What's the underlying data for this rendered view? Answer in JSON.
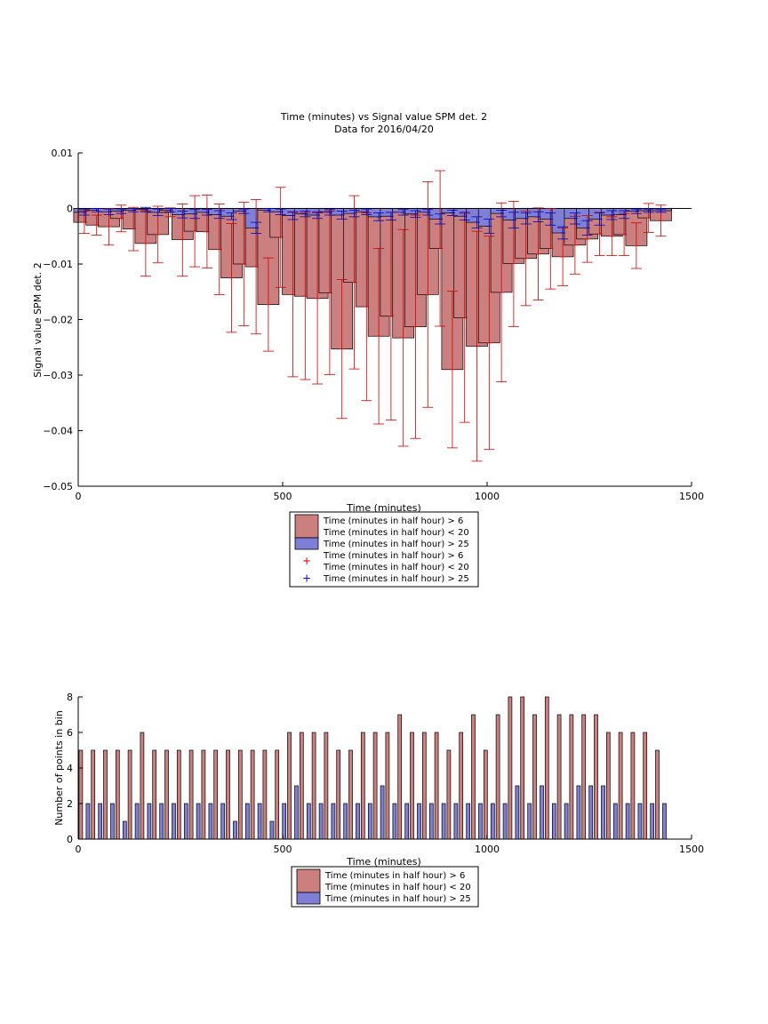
{
  "figure": {
    "background": "#ffffff"
  },
  "colors": {
    "red_fill": "#cc7f7f",
    "red_line": "#cc0000",
    "blue_fill": "#7f7fd6",
    "blue_line": "#0000cc",
    "axis": "#000000"
  },
  "chart_data": [
    {
      "type": "bar",
      "title": "Time (minutes) vs Signal value SPM det. 2",
      "subtitle": "Data for 2016/04/20",
      "xlabel": "Time (minutes)",
      "ylabel": "Signal value SPM det. 2",
      "xlim": [
        0,
        1500
      ],
      "ylim": [
        -0.05,
        0.01
      ],
      "xticks": [
        0,
        500,
        1000,
        1500
      ],
      "xtick_labels": [
        "0",
        "500",
        "1000",
        "1500"
      ],
      "yticks": [
        -0.05,
        -0.04,
        -0.03,
        -0.02,
        -0.01,
        0,
        0.01
      ],
      "ytick_labels": [
        "−0.05",
        "−0.04",
        "−0.03",
        "−0.02",
        "−0.01",
        "0",
        "0.01"
      ],
      "grid": false,
      "legend_position": "below",
      "legend": [
        {
          "kind": "bar",
          "series": "red",
          "lines": [
            "Time (minutes in half hour) > 6",
            "Time (minutes in half hour) < 20"
          ]
        },
        {
          "kind": "bar",
          "series": "blue",
          "lines": [
            "Time (minutes in half hour) > 25"
          ]
        },
        {
          "kind": "marker",
          "series": "red",
          "symbol": "+",
          "lines": [
            "Time (minutes in half hour) > 6",
            "Time (minutes in half hour) < 20"
          ]
        },
        {
          "kind": "marker",
          "series": "blue",
          "symbol": "+",
          "lines": [
            "Time (minutes in half hour) > 25"
          ]
        }
      ],
      "x": [
        15,
        45,
        75,
        105,
        135,
        165,
        195,
        225,
        255,
        285,
        315,
        345,
        375,
        405,
        435,
        465,
        495,
        525,
        555,
        585,
        615,
        645,
        675,
        705,
        735,
        765,
        795,
        825,
        855,
        885,
        915,
        945,
        975,
        1005,
        1035,
        1065,
        1095,
        1125,
        1155,
        1185,
        1215,
        1245,
        1275,
        1305,
        1335,
        1365,
        1395,
        1425
      ],
      "series": [
        {
          "color_key": "red",
          "values": [
            -0.0025,
            -0.003,
            -0.0033,
            -0.0018,
            -0.0037,
            -0.0063,
            -0.0047,
            -0.0007,
            -0.0056,
            -0.0041,
            -0.0042,
            -0.0074,
            -0.0125,
            -0.01,
            -0.0105,
            -0.0173,
            -0.0052,
            -0.0155,
            -0.0158,
            -0.0162,
            -0.0152,
            -0.0253,
            -0.0133,
            -0.0177,
            -0.023,
            -0.0194,
            -0.0233,
            -0.0213,
            -0.0155,
            -0.0072,
            -0.029,
            -0.0197,
            -0.0248,
            -0.0242,
            -0.0151,
            -0.0099,
            -0.009,
            -0.0082,
            -0.0072,
            -0.0087,
            -0.0066,
            -0.0055,
            -0.0046,
            -0.005,
            -0.0047,
            -0.0067,
            -0.0017,
            -0.0022
          ],
          "err_low": [
            -0.0045,
            -0.0048,
            -0.0066,
            -0.0042,
            -0.0076,
            -0.0122,
            -0.0098,
            -0.0015,
            -0.0122,
            -0.0105,
            -0.0107,
            -0.0155,
            -0.0223,
            -0.0211,
            -0.0226,
            -0.0257,
            -0.0142,
            -0.0303,
            -0.0308,
            -0.0316,
            -0.0299,
            -0.0378,
            -0.0289,
            -0.0346,
            -0.0388,
            -0.0381,
            -0.0428,
            -0.0414,
            -0.0358,
            -0.0212,
            -0.0431,
            -0.0385,
            -0.0455,
            -0.0434,
            -0.0312,
            -0.0213,
            -0.0175,
            -0.0165,
            -0.0145,
            -0.0139,
            -0.0118,
            -0.0097,
            -0.0085,
            -0.0085,
            -0.0085,
            -0.0108,
            -0.0043,
            -0.005
          ],
          "err_high": [
            -0.0005,
            -0.0012,
            -0.0,
            0.0006,
            0.0002,
            -0.0004,
            0.0004,
            0.0001,
            0.0008,
            0.0023,
            0.0024,
            0.0008,
            -0.0027,
            0.0011,
            0.0016,
            -0.0089,
            0.0038,
            -0.0007,
            -0.0008,
            -0.0008,
            -0.0005,
            -0.0128,
            0.0023,
            -0.0008,
            -0.0072,
            -0.0007,
            -0.0038,
            -0.0012,
            0.0048,
            0.0068,
            -0.0149,
            -0.0009,
            -0.0041,
            -0.005,
            0.001,
            0.0013,
            -0.0005,
            0.0001,
            -0.0,
            -0.0035,
            -0.0014,
            -0.0013,
            -0.0007,
            -0.0015,
            -0.0009,
            -0.0026,
            0.0009,
            0.0006
          ]
        },
        {
          "color_key": "blue",
          "values": [
            -0.0007,
            -0.0003,
            -0.0006,
            -0.0005,
            -0.0003,
            -0.0002,
            -0.0007,
            -0.0003,
            -0.0011,
            -0.001,
            -0.0007,
            -0.0011,
            -0.0014,
            -0.0005,
            -0.0035,
            -0.0003,
            -0.0006,
            -0.0013,
            -0.001,
            -0.0012,
            -0.0007,
            -0.0012,
            -0.0009,
            -0.0006,
            -0.0015,
            -0.0014,
            -0.0007,
            -0.001,
            -0.0007,
            -0.0019,
            -0.0008,
            -0.0014,
            -0.0025,
            -0.0032,
            -0.0009,
            -0.0021,
            -0.0018,
            -0.0015,
            -0.0019,
            -0.0044,
            -0.0018,
            -0.0035,
            -0.0019,
            -0.0012,
            -0.0011,
            -0.0005,
            -0.0004,
            -0.0004
          ],
          "err_low": [
            -0.0012,
            -0.0006,
            -0.0011,
            -0.0009,
            -0.0006,
            -0.0006,
            -0.0013,
            -0.0006,
            -0.0017,
            -0.0018,
            -0.0012,
            -0.0018,
            -0.002,
            -0.0009,
            -0.0045,
            -0.0006,
            -0.0011,
            -0.002,
            -0.0015,
            -0.0018,
            -0.0012,
            -0.0019,
            -0.0015,
            -0.0011,
            -0.0022,
            -0.0021,
            -0.0012,
            -0.0016,
            -0.0012,
            -0.0028,
            -0.0013,
            -0.0021,
            -0.0035,
            -0.0045,
            -0.0015,
            -0.0035,
            -0.0028,
            -0.0024,
            -0.003,
            -0.0055,
            -0.0028,
            -0.0048,
            -0.003,
            -0.002,
            -0.0018,
            -0.0009,
            -0.0007,
            -0.0007
          ],
          "err_high": [
            -0.0002,
            -0.0,
            -0.0001,
            -0.0001,
            0.0,
            0.0002,
            -0.0001,
            -0.0,
            -0.0005,
            -0.0002,
            -0.0002,
            -0.0004,
            -0.0008,
            -0.0001,
            -0.0025,
            0.0,
            -0.0001,
            -0.0006,
            -0.0005,
            -0.0006,
            -0.0002,
            -0.0005,
            -0.0003,
            -0.0001,
            -0.0008,
            -0.0007,
            -0.0002,
            -0.0004,
            -0.0002,
            -0.001,
            -0.0003,
            -0.0007,
            -0.0015,
            -0.0019,
            -0.0003,
            -0.0007,
            -0.0008,
            -0.0006,
            -0.0008,
            -0.0033,
            -0.0008,
            -0.0022,
            -0.0008,
            -0.0004,
            -0.0004,
            -0.0001,
            -0.0001,
            -0.0001
          ]
        }
      ]
    },
    {
      "type": "bar",
      "title": "",
      "xlabel": "Time (minutes)",
      "ylabel": "Number of points in bin",
      "xlim": [
        0,
        1500
      ],
      "ylim": [
        0,
        8
      ],
      "xticks": [
        0,
        500,
        1000,
        1500
      ],
      "xtick_labels": [
        "0",
        "500",
        "1000",
        "1500"
      ],
      "yticks": [
        0,
        2,
        4,
        6,
        8
      ],
      "ytick_labels": [
        "0",
        "2",
        "4",
        "6",
        "8"
      ],
      "grid": false,
      "legend_position": "below",
      "legend": [
        {
          "kind": "bar",
          "series": "red",
          "lines": [
            "Time (minutes in half hour) > 6",
            "Time (minutes in half hour) < 20"
          ]
        },
        {
          "kind": "bar",
          "series": "blue",
          "lines": [
            "Time (minutes in half hour) > 25"
          ]
        }
      ],
      "x": [
        15,
        45,
        75,
        105,
        135,
        165,
        195,
        225,
        255,
        285,
        315,
        345,
        375,
        405,
        435,
        465,
        495,
        525,
        555,
        585,
        615,
        645,
        675,
        705,
        735,
        765,
        795,
        825,
        855,
        885,
        915,
        945,
        975,
        1005,
        1035,
        1065,
        1095,
        1125,
        1155,
        1185,
        1215,
        1245,
        1275,
        1305,
        1335,
        1365,
        1395,
        1425
      ],
      "series": [
        {
          "color_key": "red",
          "values": [
            5,
            5,
            5,
            5,
            5,
            6,
            5,
            5,
            5,
            5,
            5,
            5,
            5,
            5,
            5,
            5,
            5,
            6,
            6,
            6,
            6,
            5,
            5,
            6,
            6,
            6,
            7,
            6,
            6,
            6,
            5,
            6,
            7,
            5,
            7,
            8,
            8,
            7,
            8,
            7,
            7,
            7,
            7,
            6,
            6,
            6,
            6,
            5
          ]
        },
        {
          "color_key": "blue",
          "values": [
            2,
            2,
            2,
            1,
            2,
            2,
            2,
            2,
            2,
            2,
            2,
            2,
            1,
            2,
            2,
            1,
            2,
            3,
            2,
            2,
            2,
            2,
            2,
            2,
            3,
            2,
            2,
            2,
            2,
            2,
            2,
            2,
            2,
            2,
            2,
            3,
            2,
            3,
            2,
            2,
            3,
            3,
            3,
            2,
            2,
            2,
            2,
            2
          ]
        }
      ]
    }
  ]
}
